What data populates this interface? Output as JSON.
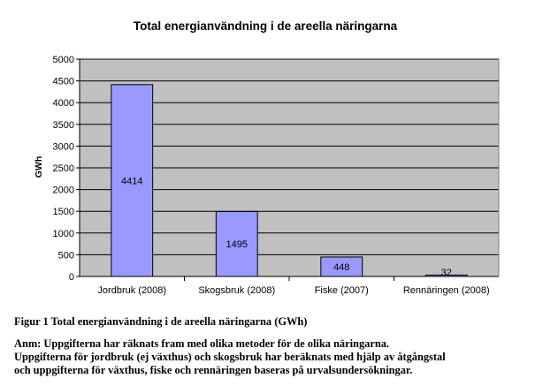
{
  "chart_data": {
    "type": "bar",
    "title": "Total energianvändning i de areella näringarna",
    "xlabel": "",
    "ylabel": "GWh",
    "ylim": [
      0,
      5000
    ],
    "yticks": [
      0,
      500,
      1000,
      1500,
      2000,
      2500,
      3000,
      3500,
      4000,
      4500,
      5000
    ],
    "categories": [
      "Jordbruk (2008)",
      "Skogsbruk (2008)",
      "Fiske (2007)",
      "Rennäringen (2008)"
    ],
    "values": [
      4414,
      1495,
      448,
      32
    ],
    "data_labels": [
      "4414",
      "1495",
      "448",
      "32"
    ],
    "grid": true,
    "legend": "none",
    "colors": {
      "bar_fill": "#9999ff",
      "bar_stroke": "#000000",
      "plot_bg": "#c0c0c0",
      "grid": "#000000"
    }
  },
  "caption": {
    "figure": "Figur 1 Total energianvändning i de areella näringarna (GWh)",
    "note_lines": [
      "Anm: Uppgifterna har räknats fram med olika metoder för de olika näringarna.",
      "Uppgifterna för jordbruk (ej växthus) och skogsbruk har beräknats med hjälp av åtgångstal",
      "och uppgifterna för växthus, fiske och rennäringen baseras på urvalsundersökningar."
    ]
  }
}
